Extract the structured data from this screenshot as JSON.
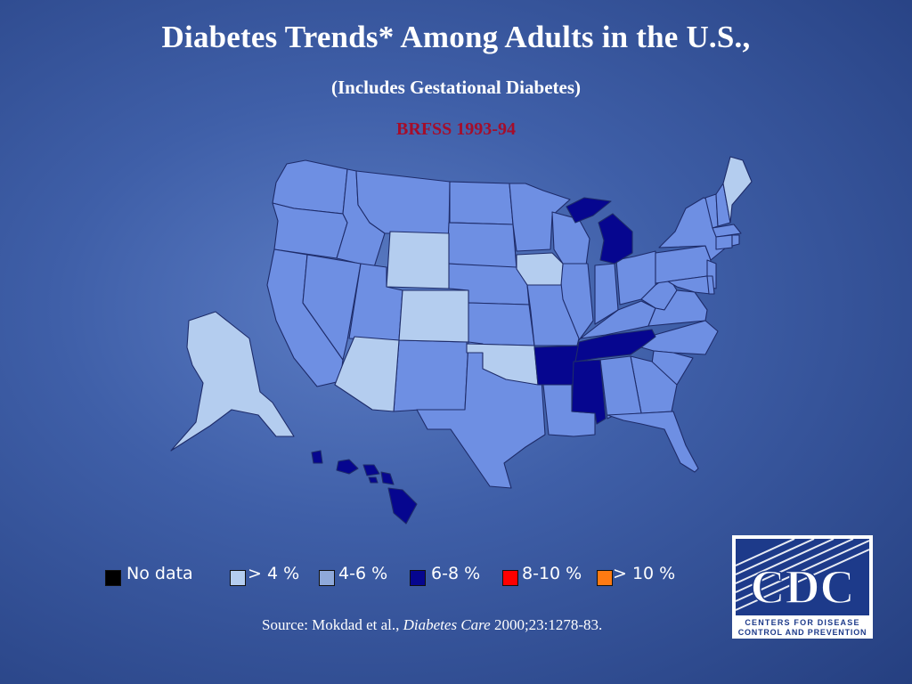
{
  "slide": {
    "title": "Diabetes Trends* Among Adults in the U.S.,",
    "subtitle": "(Includes Gestational Diabetes)",
    "period": "BRFSS 1993-94"
  },
  "legend": [
    {
      "label": "No data",
      "color": "#000000"
    },
    {
      "label": "> 4 %",
      "color": "#b4cdef"
    },
    {
      "label": "4-6 %",
      "color": "#8fa9da"
    },
    {
      "label": "6-8 %",
      "color": "#06068f"
    },
    {
      "label": "8-10 %",
      "color": "#ff0000"
    },
    {
      "label": "> 10 %",
      "color": "#ff7a12"
    }
  ],
  "map_colors": {
    "lt4": "#b4cdef",
    "4to6": "#6e8fe3",
    "6to8": "#06068f"
  },
  "states": {
    "lt4": [
      "ME",
      "WY",
      "CO",
      "IA",
      "AZ",
      "OK",
      "AK"
    ],
    "6to8": [
      "MI",
      "AR",
      "MS",
      "TN",
      "HI"
    ],
    "4to6_note": "all other states"
  },
  "source": {
    "prefix": "Source: Mokdad et al., ",
    "journal": "Diabetes Care",
    "suffix": " 2000;23:1278-83."
  },
  "logo": {
    "text": "CDC",
    "line1": "CENTERS FOR DISEASE",
    "line2": "CONTROL AND PREVENTION"
  }
}
